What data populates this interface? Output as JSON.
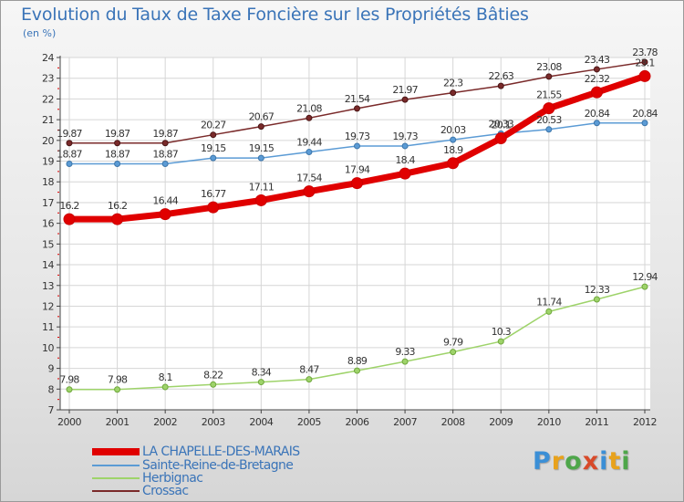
{
  "title": "Evolution du Taux de Taxe Foncière sur les Propriétés Bâties",
  "unit_label": "(en %)",
  "logo": {
    "letters": [
      "P",
      "r",
      "o",
      "x",
      "i",
      "t",
      "i"
    ],
    "colors": [
      "#3b8fd6",
      "#e8a21c",
      "#4ea64a",
      "#d84a2a",
      "#3b8fd6",
      "#e8a21c",
      "#4ea64a"
    ]
  },
  "chart_data": {
    "type": "line",
    "title": "Evolution du Taux de Taxe Foncière sur les Propriétés Bâties",
    "ylabel": "(en %)",
    "xlabel": "",
    "x": [
      "2000",
      "2001",
      "2002",
      "2003",
      "2004",
      "2005",
      "2006",
      "2007",
      "2008",
      "2009",
      "2010",
      "2011",
      "2012"
    ],
    "ylim": [
      7,
      24
    ],
    "yticks": [
      7,
      8,
      9,
      10,
      11,
      12,
      13,
      14,
      15,
      16,
      17,
      18,
      19,
      20,
      21,
      22,
      23,
      24
    ],
    "grid": true,
    "legend_position": "bottom-left",
    "series": [
      {
        "name": "LA CHAPELLE-DES-MARAIS",
        "color": "#e00000",
        "values": [
          16.2,
          16.2,
          16.44,
          16.77,
          17.11,
          17.54,
          17.94,
          18.4,
          18.9,
          20.1,
          21.55,
          22.32,
          23.1
        ],
        "labels": [
          "16.2",
          "16.2",
          "16.44",
          "16.77",
          "17.11",
          "17.54",
          "17.94",
          "18.4",
          "18.9",
          "20.1",
          "21.55",
          "22.32",
          "23.1"
        ]
      },
      {
        "name": "Sainte-Reine-de-Bretagne",
        "color": "#5b9bd5",
        "values": [
          18.87,
          18.87,
          18.87,
          19.15,
          19.15,
          19.44,
          19.73,
          19.73,
          20.03,
          20.33,
          20.53,
          20.84,
          20.84
        ],
        "labels": [
          "18.87",
          "18.87",
          "18.87",
          "19.15",
          "19.15",
          "19.44",
          "19.73",
          "19.73",
          "20.03",
          "20.33",
          "20.53",
          "20.84",
          "20.84"
        ]
      },
      {
        "name": "Herbignac",
        "color": "#9ed36a",
        "values": [
          7.98,
          7.98,
          8.1,
          8.22,
          8.34,
          8.47,
          8.89,
          9.33,
          9.79,
          10.3,
          11.74,
          12.33,
          12.94
        ],
        "labels": [
          "7.98",
          "7.98",
          "8.1",
          "8.22",
          "8.34",
          "8.47",
          "8.89",
          "9.33",
          "9.79",
          "10.3",
          "11.74",
          "12.33",
          "12.94"
        ]
      },
      {
        "name": "Crossac",
        "color": "#7a2a2a",
        "values": [
          19.87,
          19.87,
          19.87,
          20.27,
          20.67,
          21.08,
          21.54,
          21.97,
          22.3,
          22.63,
          23.08,
          23.43,
          23.78
        ],
        "labels": [
          "19.87",
          "19.87",
          "19.87",
          "20.27",
          "20.67",
          "21.08",
          "21.54",
          "21.97",
          "22.3",
          "22.63",
          "23.08",
          "23.43",
          "23.78"
        ]
      }
    ]
  }
}
